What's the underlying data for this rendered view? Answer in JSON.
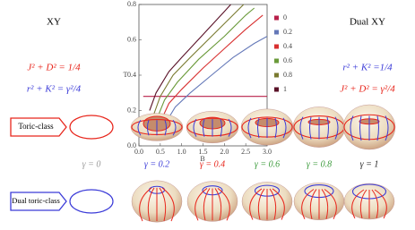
{
  "left": {
    "title": "XY",
    "eq1": "J² + D² = 1/4",
    "eq1_color": "#e8261c",
    "eq2": "r² + K² = γ²/4",
    "eq2_color": "#3b3bd8"
  },
  "right": {
    "title": "Dual XY",
    "eq1": "r² + K² =1/4",
    "eq1_color": "#3b3bd8",
    "eq2": "J² + D² = γ²/4",
    "eq2_color": "#e8261c"
  },
  "chart_data": {
    "type": "line",
    "xlabel": "B",
    "ylabel": "T",
    "xlim": [
      0,
      3
    ],
    "ylim": [
      0,
      0.8
    ],
    "xticks": [
      {
        "value": 0,
        "label": "0.0"
      },
      0.5,
      {
        "value": 1,
        "label": "1.0"
      },
      1.5,
      {
        "value": 2,
        "label": "2.0"
      },
      2.5,
      {
        "value": 3,
        "label": "3.0"
      }
    ],
    "yticks": [
      {
        "value": 0,
        "label": "0.0"
      },
      0.2,
      0.4,
      0.6,
      0.8
    ],
    "series": [
      {
        "name": "0",
        "color": "#b8204a",
        "x": [
          0.1,
          3
        ],
        "values": [
          0.28,
          0.28
        ]
      },
      {
        "name": "0.2",
        "color": "#6478b8",
        "x": [
          0.7,
          0.85,
          1.2,
          1.7,
          2.2,
          2.7,
          3.0
        ],
        "values": [
          0.16,
          0.22,
          0.3,
          0.4,
          0.5,
          0.58,
          0.62
        ]
      },
      {
        "name": "0.4",
        "color": "#d83030",
        "x": [
          0.55,
          0.7,
          1.0,
          1.5,
          2.0,
          2.5,
          2.9
        ],
        "values": [
          0.16,
          0.24,
          0.32,
          0.44,
          0.55,
          0.66,
          0.74
        ]
      },
      {
        "name": "0.6",
        "color": "#6a9a3a",
        "x": [
          0.45,
          0.6,
          0.9,
          1.4,
          2.0,
          2.5,
          2.7
        ],
        "values": [
          0.17,
          0.26,
          0.36,
          0.49,
          0.62,
          0.74,
          0.78
        ]
      },
      {
        "name": "0.8",
        "color": "#7a7a30",
        "x": [
          0.35,
          0.5,
          0.8,
          1.2,
          1.7,
          2.2,
          2.45
        ],
        "values": [
          0.18,
          0.28,
          0.4,
          0.5,
          0.62,
          0.74,
          0.8
        ]
      },
      {
        "name": "1",
        "color": "#5a1228",
        "x": [
          0.25,
          0.4,
          0.7,
          1.0,
          1.5,
          2.0,
          2.15
        ],
        "values": [
          0.2,
          0.3,
          0.42,
          0.5,
          0.63,
          0.76,
          0.8
        ]
      }
    ]
  },
  "rows": [
    {
      "label": "Toric-class",
      "color": "#e8261c"
    },
    {
      "label": "Dual toric-class",
      "color": "#3b3bd8"
    }
  ],
  "gammas": [
    {
      "label": "γ = 0",
      "color": "#999999"
    },
    {
      "label": "γ = 0.2",
      "color": "#3b3bd8"
    },
    {
      "label": "γ = 0.4",
      "color": "#e8261c"
    },
    {
      "label": "γ = 0.6",
      "color": "#3a9a3a"
    },
    {
      "label": "γ = 0.8",
      "color": "#3a9a3a"
    },
    {
      "label": "γ = 1",
      "color": "#222222"
    }
  ]
}
